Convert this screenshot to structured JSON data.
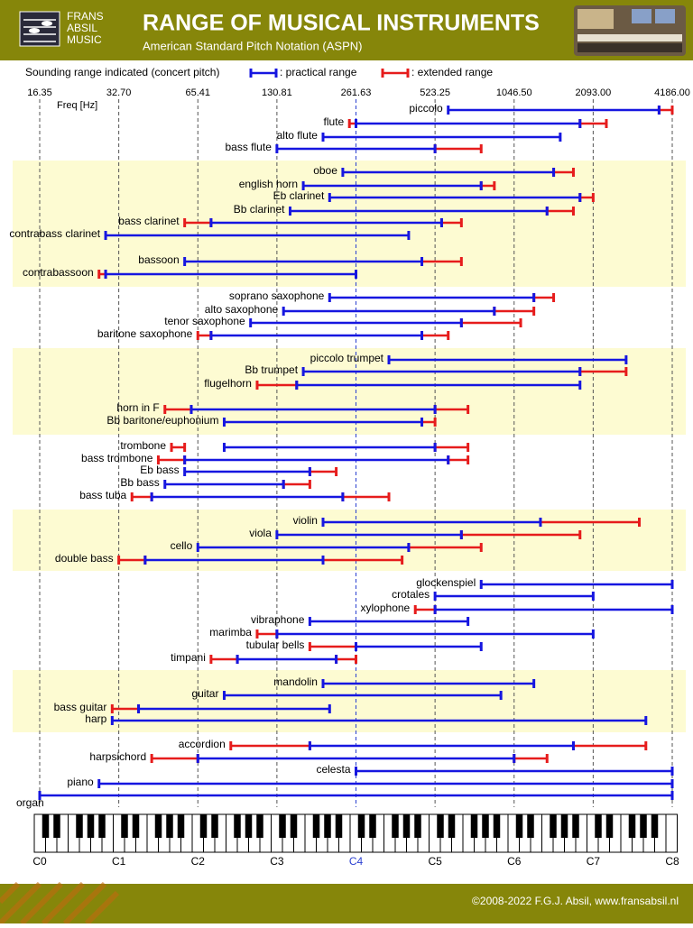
{
  "header": {
    "logo": [
      "FRANS",
      "ABSIL",
      "MUSIC"
    ]
  },
  "chart_data": {
    "type": "range",
    "title": "RANGE OF MUSICAL INSTRUMENTS",
    "subtitle": "American Standard Pitch Notation (ASPN)",
    "legend_note": "Sounding range indicated (concert pitch)",
    "x_label": "Freq [Hz]",
    "xscale": "log",
    "grid": true,
    "xlim": [
      16.35,
      4186.01
    ],
    "xticks": [
      16.35,
      {
        "value": 32.7,
        "label": "32.70"
      },
      65.41,
      130.81,
      261.63,
      523.25,
      {
        "value": 1046.5,
        "label": "1046.50"
      },
      {
        "value": 2093,
        "label": "2093.00"
      },
      {
        "value": 4186,
        "label": "4186.00"
      }
    ],
    "x2ticks": [
      {
        "value": 16.35,
        "label": "C0"
      },
      {
        "value": 32.7,
        "label": "C1"
      },
      {
        "value": 65.41,
        "label": "C2"
      },
      {
        "value": 130.81,
        "label": "C3"
      },
      {
        "value": 261.63,
        "label": "C4",
        "color": "#2a3fd0"
      },
      {
        "value": 523.25,
        "label": "C5"
      },
      {
        "value": 1046.5,
        "label": "C6"
      },
      {
        "value": 2093,
        "label": "C7"
      },
      {
        "value": 4186,
        "label": "C8"
      }
    ],
    "categories": [
      "piccolo",
      "flute",
      "alto flute",
      "bass flute",
      "oboe",
      "english horn",
      "Eb clarinet",
      "Bb clarinet",
      "bass clarinet",
      "contrabass clarinet",
      "bassoon",
      "contrabassoon",
      "soprano saxophone",
      "alto saxophone",
      "tenor saxophone",
      "baritone saxophone",
      "piccolo trumpet",
      "Bb trumpet",
      "flugelhorn",
      "horn in F",
      "Bb baritone/euphonium",
      "trombone",
      "bass trombone",
      "Eb bass",
      "Bb bass",
      "bass tuba",
      "violin",
      "viola",
      "cello",
      "double bass",
      "glockenspiel",
      "crotales",
      "xylophone",
      "vibraphone",
      "marimba",
      "tubular bells",
      "timpani",
      "mandolin",
      "guitar",
      "bass guitar",
      "harp",
      "accordion",
      "harpsichord",
      "celesta",
      "piano",
      "organ"
    ],
    "series": [
      {
        "name": ": practical range",
        "color": "#1616e0",
        "values": [
          [
            587.33,
            3729.31
          ],
          [
            261.63,
            1864.66
          ],
          [
            196.0,
            1567.98
          ],
          [
            130.81,
            523.25
          ],
          [
            233.08,
            1479.98
          ],
          [
            164.81,
            783.99
          ],
          [
            207.65,
            1864.66
          ],
          [
            146.83,
            1396.91
          ],
          [
            73.42,
            554.37
          ],
          [
            29.14,
            415.3
          ],
          [
            58.27,
            466.16
          ],
          [
            29.14,
            261.63
          ],
          [
            207.65,
            1244.51
          ],
          [
            138.59,
            880.0
          ],
          [
            103.83,
            659.26
          ],
          [
            73.42,
            466.16
          ],
          [
            349.23,
            2793.83
          ],
          [
            164.81,
            1864.66
          ],
          [
            155.56,
            1864.66
          ],
          [
            61.74,
            523.25
          ],
          [
            82.41,
            466.16
          ],
          [
            82.41,
            523.25
          ],
          [
            58.27,
            587.33
          ],
          [
            58.27,
            174.61
          ],
          [
            49.0,
            138.59
          ],
          [
            43.65,
            233.08
          ],
          [
            196.0,
            1318.51
          ],
          [
            130.81,
            659.26
          ],
          [
            65.41,
            415.3
          ],
          [
            41.2,
            196.0
          ],
          [
            783.99,
            4186.01
          ],
          [
            523.25,
            2093.0
          ],
          [
            523.25,
            4186.01
          ],
          [
            174.61,
            698.46
          ],
          [
            130.81,
            2093.0
          ],
          [
            261.63,
            783.99
          ],
          [
            92.5,
            220.0
          ],
          [
            196.0,
            1244.51
          ],
          [
            82.41,
            932.33
          ],
          [
            38.89,
            207.65
          ],
          [
            30.87,
            3322.44
          ],
          [
            174.61,
            1760.0
          ],
          [
            65.41,
            1046.5
          ],
          [
            261.63,
            4186.01
          ],
          [
            27.5,
            4186.01
          ],
          [
            16.35,
            4186.01
          ]
        ]
      },
      {
        "name": ": extended range",
        "color": "#e61c1c",
        "values": [
          [
            [
              3729.31,
              4186.01
            ]
          ],
          [
            [
              246.94,
              261.63
            ],
            [
              1864.66,
              2349.32
            ]
          ],
          null,
          [
            [
              523.25,
              783.99
            ]
          ],
          [
            [
              1479.98,
              1760.0
            ]
          ],
          [
            [
              783.99,
              880.0
            ]
          ],
          [
            [
              1864.66,
              2093.0
            ]
          ],
          [
            [
              1396.91,
              1760.0
            ]
          ],
          [
            [
              58.27,
              73.42
            ],
            [
              554.37,
              659.26
            ]
          ],
          null,
          [
            [
              466.16,
              659.26
            ]
          ],
          [
            [
              27.5,
              29.14
            ]
          ],
          [
            [
              1244.51,
              1479.98
            ]
          ],
          [
            [
              880.0,
              1244.51
            ]
          ],
          [
            [
              659.26,
              1108.73
            ]
          ],
          [
            [
              65.41,
              73.42
            ],
            [
              466.16,
              587.33
            ]
          ],
          null,
          [
            [
              1864.66,
              2793.83
            ]
          ],
          [
            [
              110.0,
              155.56
            ]
          ],
          [
            [
              49.0,
              61.74
            ],
            [
              523.25,
              698.46
            ]
          ],
          [
            [
              466.16,
              523.25
            ]
          ],
          [
            [
              51.91,
              58.27
            ],
            [
              523.25,
              698.46
            ]
          ],
          [
            [
              46.25,
              58.27
            ],
            [
              587.33,
              698.46
            ]
          ],
          [
            [
              174.61,
              220.0
            ]
          ],
          [
            [
              138.59,
              174.61
            ]
          ],
          [
            [
              36.71,
              43.65
            ],
            [
              233.08,
              349.23
            ]
          ],
          [
            [
              1318.51,
              3135.96
            ]
          ],
          [
            [
              659.26,
              1864.66
            ]
          ],
          [
            [
              415.3,
              783.99
            ]
          ],
          [
            [
              32.7,
              41.2
            ],
            [
              196.0,
              392.0
            ]
          ],
          null,
          null,
          [
            [
              440.0,
              523.25
            ]
          ],
          null,
          [
            [
              110.0,
              130.81
            ]
          ],
          [
            [
              174.61,
              261.63
            ]
          ],
          [
            [
              73.42,
              92.5
            ],
            [
              220.0,
              261.63
            ]
          ],
          null,
          null,
          [
            [
              30.87,
              38.89
            ]
          ],
          null,
          [
            [
              87.31,
              174.61
            ],
            [
              1760.0,
              3322.44
            ]
          ],
          [
            [
              43.65,
              65.41
            ],
            [
              1046.5,
              1396.91
            ]
          ],
          null,
          null,
          null
        ]
      }
    ]
  },
  "footer": "©2008-2022 F.G.J. Absil, www.fransabsil.nl"
}
